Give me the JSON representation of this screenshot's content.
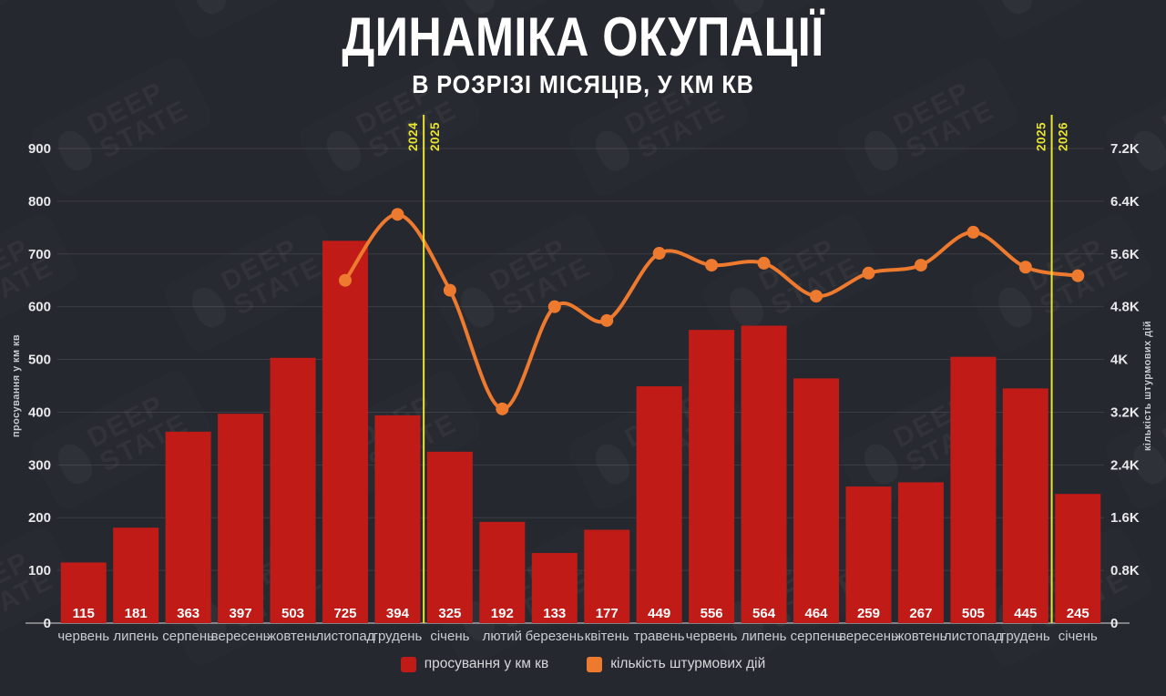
{
  "title": "ДИНАМІКА ОКУПАЦІЇ",
  "subtitle": "В РОЗРІЗІ МІСЯЦІВ, У КМ КВ",
  "watermark": {
    "line1": "DEEP",
    "line2": "STATE"
  },
  "colors": {
    "background": "#26282f",
    "bar": "#c01b17",
    "line": "#ed7a2e",
    "divider": "#e9e42f",
    "grid": "rgba(255,255,255,0.10)",
    "baseline": "rgba(255,255,255,0.55)"
  },
  "chart_data": {
    "type": "bar+line combo",
    "title": "ДИНАМІКА ОКУПАЦІЇ",
    "subtitle": "В РОЗРІЗІ МІСЯЦІВ, У КМ КВ",
    "categories": [
      "червень",
      "липень",
      "серпень",
      "вересень",
      "жовтень",
      "листопад",
      "грудень",
      "січень",
      "лютий",
      "березень",
      "квітень",
      "травень",
      "червень",
      "липень",
      "серпень",
      "вересень",
      "жовтень",
      "листопад",
      "грудень",
      "січень"
    ],
    "series": [
      {
        "name": "просування у км кв",
        "type": "bar",
        "axis": "left",
        "color": "#c01b17",
        "values": [
          115,
          181,
          363,
          397,
          503,
          725,
          394,
          325,
          192,
          133,
          177,
          449,
          556,
          564,
          464,
          259,
          267,
          505,
          445,
          245
        ]
      },
      {
        "name": "кількість штурмових дій",
        "type": "line",
        "axis": "right",
        "color": "#ed7a2e",
        "values": [
          null,
          null,
          null,
          null,
          null,
          5200,
          6200,
          5050,
          3250,
          4800,
          4590,
          5610,
          5430,
          5460,
          4960,
          5310,
          5430,
          5930,
          5400,
          5270
        ]
      }
    ],
    "left_axis": {
      "label": "просування у км кв",
      "min": 0,
      "max": 900,
      "step": 100,
      "ticks": [
        "0",
        "100",
        "200",
        "300",
        "400",
        "500",
        "600",
        "700",
        "800",
        "900"
      ]
    },
    "right_axis": {
      "label": "кількість штурмових дій",
      "min": 0,
      "max": 7200,
      "step": 800,
      "ticks": [
        "0",
        "0.8K",
        "1.6K",
        "2.4K",
        "3.2K",
        "4K",
        "4.8K",
        "5.6K",
        "6.4K",
        "7.2K"
      ]
    },
    "year_dividers": [
      {
        "after_index": 6,
        "left_label": "2024",
        "right_label": "2025"
      },
      {
        "after_index": 18,
        "left_label": "2025",
        "right_label": "2026"
      }
    ],
    "legend": [
      {
        "label": "просування у км кв",
        "color": "#c01b17"
      },
      {
        "label": "кількість штурмових дій",
        "color": "#ed7a2e"
      }
    ],
    "grid": "horizontal only"
  }
}
